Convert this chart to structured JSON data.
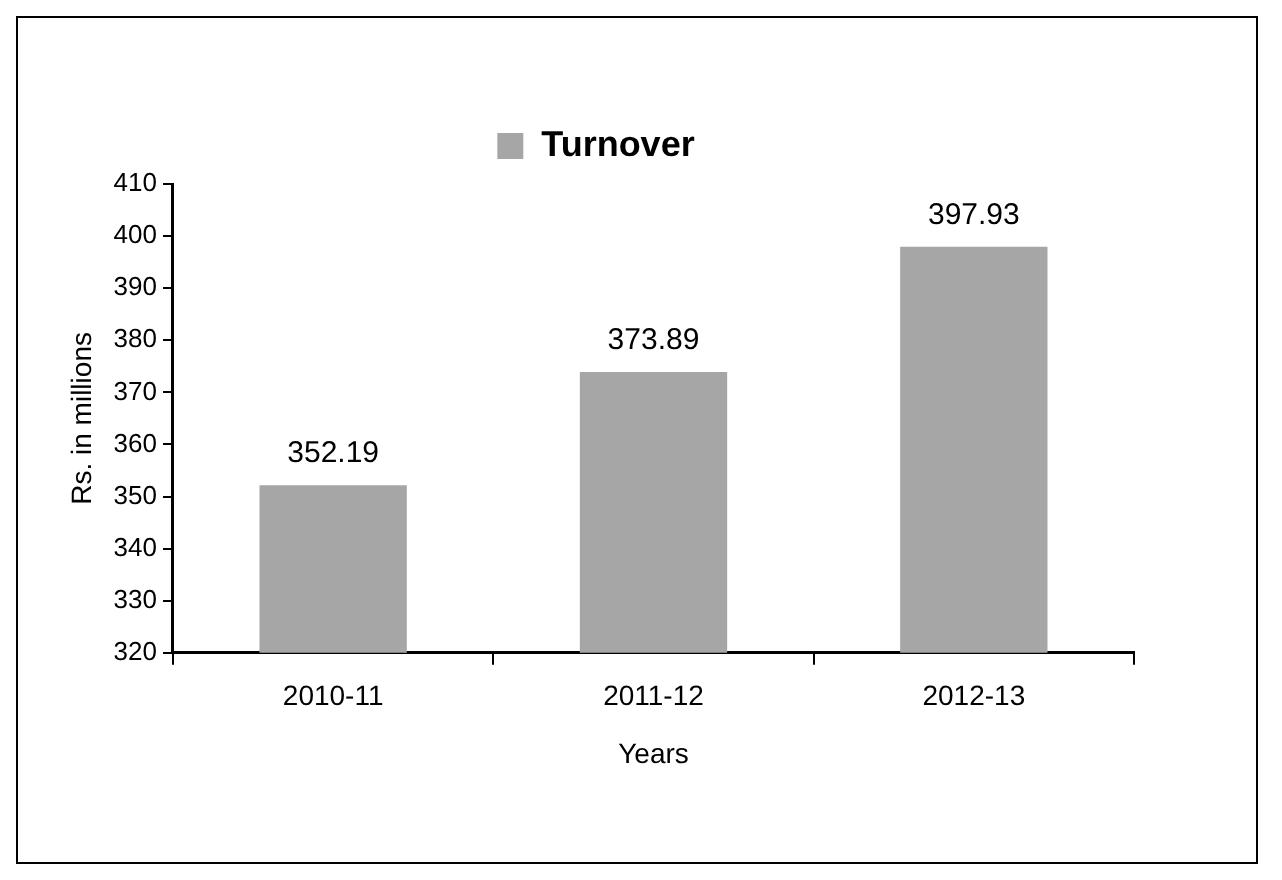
{
  "chart_data": {
    "type": "bar",
    "categories": [
      "2010-11",
      "2011-12",
      "2012-13"
    ],
    "series": [
      {
        "name": "Turnover",
        "color": "#a6a6a6",
        "values": [
          352.19,
          373.89,
          397.93
        ]
      }
    ],
    "xlabel": "Years",
    "ylabel": "Rs. in millions",
    "ylim": [
      320,
      410
    ],
    "yticks": [
      320,
      330,
      340,
      350,
      360,
      370,
      380,
      390,
      400,
      410
    ],
    "grid": false,
    "legend": "top",
    "data_labels": true
  }
}
